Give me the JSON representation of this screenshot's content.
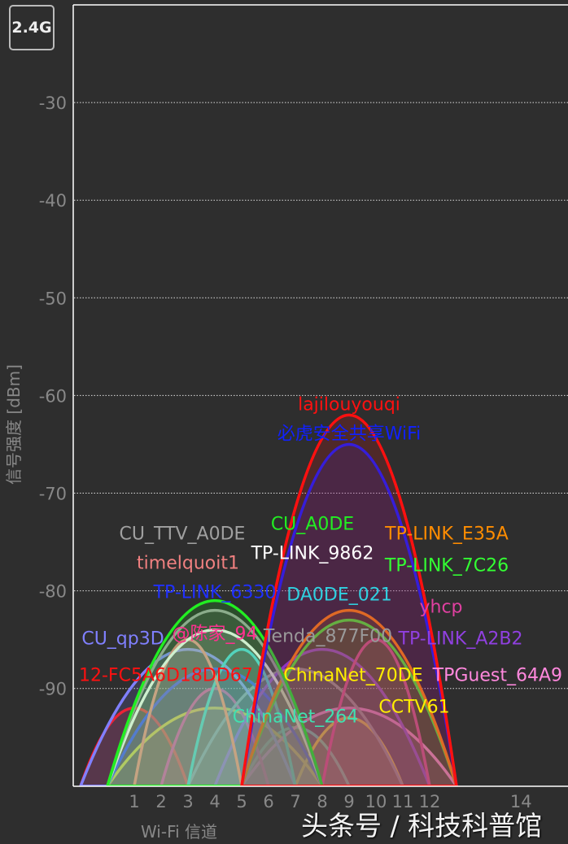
{
  "band_button": "2.4G",
  "watermark": "头条号 / 科技科普馆",
  "chart_data": {
    "type": "area",
    "xlabel": "Wi-Fi 信道",
    "ylabel": "信号强度 [dBm]",
    "ylim": [
      -100,
      -20
    ],
    "yticks": [
      -30,
      -40,
      -50,
      -60,
      -70,
      -80,
      -90
    ],
    "xticks": [
      1,
      2,
      3,
      4,
      5,
      6,
      7,
      8,
      9,
      10,
      11,
      12,
      14
    ],
    "grid": "horizontal dotted",
    "networks": [
      {
        "ssid": "lajilouyouqi",
        "channel": 9,
        "dbm": -62,
        "width": 40,
        "color": "#ff1010"
      },
      {
        "ssid": "必虎安全共享WiFi",
        "channel": 9,
        "dbm": -65,
        "width": 40,
        "color": "#1020ff"
      },
      {
        "ssid": "TP-LINK_E35A",
        "channel": 9,
        "dbm": -82,
        "width": 40,
        "color": "#ff8c00"
      },
      {
        "ssid": "TP-LINK_7C26",
        "channel": 9,
        "dbm": -83,
        "width": 40,
        "color": "#33ff33"
      },
      {
        "ssid": "yhcp",
        "channel": 10,
        "dbm": -85,
        "width": 20,
        "color": "#e040a0"
      },
      {
        "ssid": "TP-LINK_A2B2",
        "channel": 8,
        "dbm": -86,
        "width": 40,
        "color": "#9040e0"
      },
      {
        "ssid": "Tenda_877F00",
        "channel": 7,
        "dbm": -88,
        "width": 40,
        "color": "#9a9a9a"
      },
      {
        "ssid": "CU_A0DE",
        "channel": 4,
        "dbm": -81,
        "width": 40,
        "color": "#22ee22"
      },
      {
        "ssid": "CU_TTV_A0DE",
        "channel": 4,
        "dbm": -82,
        "width": 40,
        "color": "#a0a0a0"
      },
      {
        "ssid": "TP-LINK_9862",
        "channel": 4,
        "dbm": -84,
        "width": 40,
        "color": "#ffffff"
      },
      {
        "ssid": "timelquoit1",
        "channel": 3,
        "dbm": -85,
        "width": 20,
        "color": "#f08080"
      },
      {
        "ssid": "CU_qp3D",
        "channel": 3,
        "dbm": -86,
        "width": 40,
        "color": "#8080ff"
      },
      {
        "ssid": "DA0DE_021",
        "channel": 5,
        "dbm": -86,
        "width": 20,
        "color": "#30d0e0"
      },
      {
        "ssid": "TP-LINK_6330",
        "channel": 4,
        "dbm": -88,
        "width": 40,
        "color": "#2030ff"
      },
      {
        "ssid": "@陈家_94",
        "channel": 4,
        "dbm": -90,
        "width": 20,
        "color": "#ff3090"
      },
      {
        "ssid": "12-FC5A6D18DD67",
        "channel": 1,
        "dbm": -92,
        "width": 20,
        "color": "#ff1010"
      },
      {
        "ssid": "ChinaNet_70DE",
        "channel": 4,
        "dbm": -92,
        "width": 40,
        "color": "#ffee00"
      },
      {
        "ssid": "TPGuest_64A9",
        "channel": 9,
        "dbm": -92,
        "width": 40,
        "color": "#ff88dd"
      },
      {
        "ssid": "CCTV61",
        "channel": 9,
        "dbm": -93,
        "width": 20,
        "color": "#ffee00"
      },
      {
        "ssid": "ChinaNet_264",
        "channel": 7,
        "dbm": -94,
        "width": 20,
        "color": "#40e0b0"
      }
    ]
  }
}
